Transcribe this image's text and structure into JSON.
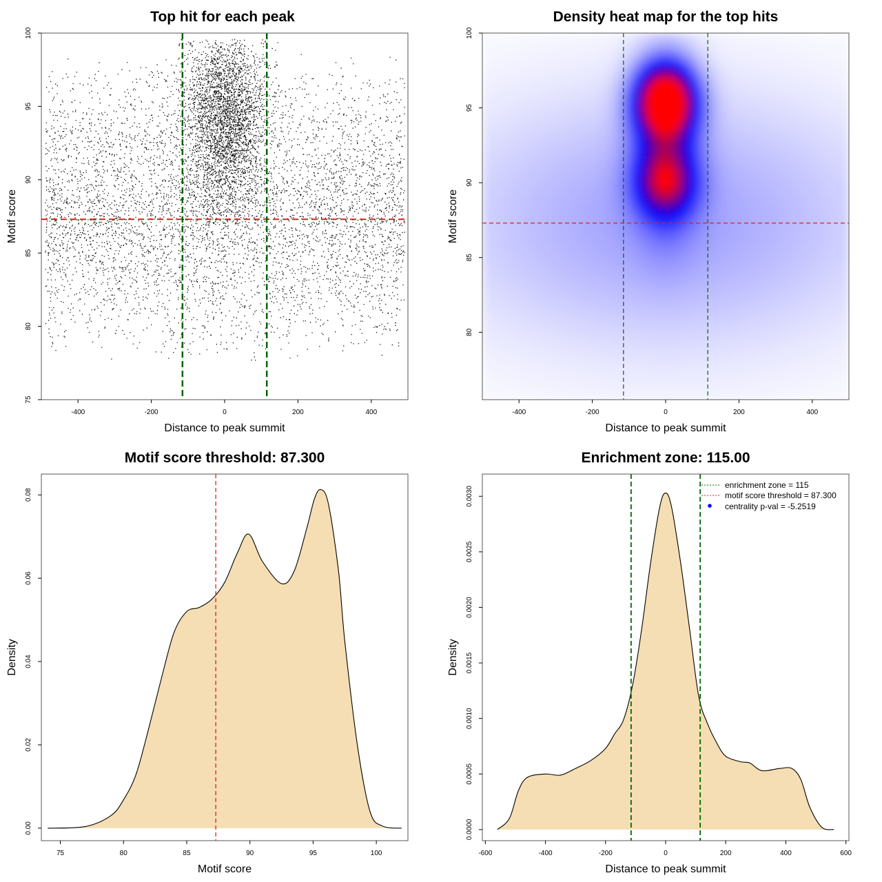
{
  "colors": {
    "threshold_line": "#e41a1c",
    "zone_line": "#006400",
    "density_fill": "#f5deb3",
    "heat_low": "#ffffff",
    "heat_mid": "#0000ff",
    "heat_high": "#ff0000",
    "legend_point": "#0000ff"
  },
  "chart_data": [
    {
      "type": "scatter",
      "title": "Top hit for each peak",
      "xlabel": "Distance to peak summit",
      "ylabel": "Motif score",
      "xlim": [
        -500,
        500
      ],
      "ylim": [
        75,
        100
      ],
      "xticks": [
        "-400",
        "-200",
        "0",
        "200",
        "400"
      ],
      "yticks": [
        "75",
        "80",
        "85",
        "90",
        "95",
        "100"
      ],
      "threshold": 87.3,
      "zone": [
        -115,
        115
      ],
      "point_count": 9000,
      "central_fraction": 0.38,
      "central_center": [
        0,
        94.5
      ],
      "central_sd": [
        55,
        3.2
      ],
      "background_score_range": [
        77.5,
        98.5
      ]
    },
    {
      "type": "heatmap",
      "title": "Density heat map for the top hits",
      "xlabel": "Distance to peak summit",
      "ylabel": "Motif score",
      "xlim": [
        -500,
        500
      ],
      "ylim": [
        75.5,
        100
      ],
      "xticks": [
        "-400",
        "-200",
        "0",
        "200",
        "400"
      ],
      "yticks": [
        "80",
        "85",
        "90",
        "95",
        "100"
      ],
      "threshold": 87.3,
      "zone": [
        -115,
        115
      ],
      "hotspot_center": [
        0,
        95.5
      ],
      "secondary_center": [
        0,
        90
      ]
    },
    {
      "type": "area",
      "title": "Motif score threshold: 87.300",
      "xlabel": "Motif score",
      "ylabel": "Density",
      "xlim": [
        73.5,
        102.5
      ],
      "ylim": [
        -0.003,
        0.085
      ],
      "xticks": [
        "75",
        "80",
        "85",
        "90",
        "95",
        "100"
      ],
      "yticks": [
        "0.00",
        "0.02",
        "0.04",
        "0.06",
        "0.08"
      ],
      "threshold": 87.3,
      "x": [
        74,
        77,
        79,
        80,
        81,
        82,
        83,
        84,
        85,
        86,
        87,
        88,
        89,
        89.9,
        91,
        92.5,
        93.5,
        94.5,
        95.1,
        95.6,
        96.2,
        97,
        97.5,
        98.5,
        99.5,
        100.5,
        102
      ],
      "y": [
        0.0,
        0.0004,
        0.003,
        0.0068,
        0.013,
        0.024,
        0.036,
        0.047,
        0.052,
        0.053,
        0.055,
        0.059,
        0.066,
        0.0706,
        0.064,
        0.0587,
        0.0617,
        0.072,
        0.079,
        0.0813,
        0.078,
        0.062,
        0.045,
        0.02,
        0.004,
        0.0005,
        0.0
      ]
    },
    {
      "type": "area",
      "title": "Enrichment zone: 115.00",
      "xlabel": "Distance to peak summit",
      "ylabel": "Density",
      "xlim": [
        -610,
        610
      ],
      "ylim": [
        -0.0001,
        0.0032
      ],
      "xticks": [
        "-600",
        "-400",
        "-200",
        "0",
        "200",
        "400",
        "600"
      ],
      "yticks": [
        "0.0000",
        "0.0005",
        "0.0010",
        "0.0015",
        "0.0020",
        "0.0025",
        "0.0030"
      ],
      "zone": [
        -115,
        115
      ],
      "x": [
        -560,
        -520,
        -490,
        -460,
        -400,
        -350,
        -300,
        -250,
        -200,
        -170,
        -140,
        -110,
        -80,
        -50,
        -20,
        0,
        20,
        50,
        80,
        110,
        140,
        170,
        200,
        250,
        280,
        320,
        380,
        420,
        450,
        480,
        520,
        560
      ],
      "y": [
        0.0,
        0.0001,
        0.00035,
        0.00047,
        0.0005,
        0.00049,
        0.00055,
        0.00062,
        0.00073,
        0.00086,
        0.00099,
        0.0013,
        0.0018,
        0.0024,
        0.0029,
        0.00303,
        0.0029,
        0.0024,
        0.0018,
        0.0012,
        0.00095,
        0.00078,
        0.00066,
        0.00061,
        0.0006,
        0.00053,
        0.00055,
        0.00055,
        0.00045,
        0.0002,
        2e-05,
        0.0
      ],
      "legend": [
        {
          "label": "enrichment zone = 115",
          "kind": "dotted-line",
          "color": "#006400"
        },
        {
          "label": "motif score threshold = 87.300",
          "kind": "dotted-line",
          "color": "#e41a1c"
        },
        {
          "label": "centrality p-val = -5.2519",
          "kind": "point",
          "color": "#0000ff"
        }
      ]
    }
  ]
}
